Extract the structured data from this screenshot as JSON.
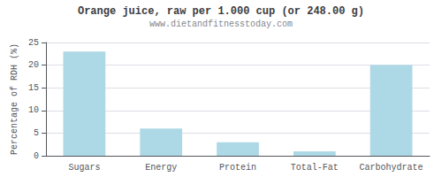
{
  "chart_data": {
    "type": "bar",
    "title": "Orange juice, raw per 1.000 cup (or 248.00 g)",
    "subtitle": "www.dietandfitnesstoday.com",
    "categories": [
      "Sugars",
      "Energy",
      "Protein",
      "Total-Fat",
      "Carbohydrate"
    ],
    "values": [
      23,
      6,
      3,
      1,
      20
    ],
    "color": "#add8e6",
    "ylabel": "Percentage of RDH (%)",
    "ylim": [
      0,
      25
    ],
    "yticks": [
      0,
      5,
      10,
      15,
      20,
      25
    ],
    "grid": true
  }
}
